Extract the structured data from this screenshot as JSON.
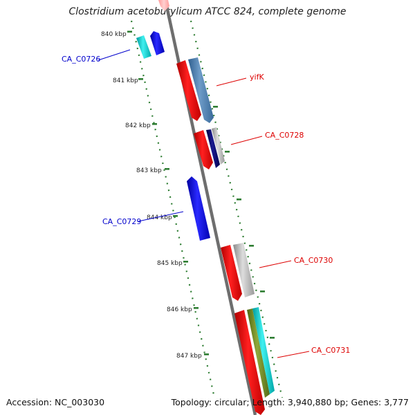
{
  "title": "Clostridium acetobutylicum ATCC 824, complete genome",
  "footer": {
    "accession": "Accession: NC_003030",
    "summary": "Topology: circular; Length: 3,940,880 bp; Genes: 3,777"
  },
  "colors": {
    "backbone": "#8a8a8a",
    "tick": "#2e7d32",
    "forward_label": "#dd0000",
    "reverse_label": "#0000cc"
  },
  "scale_ticks": [
    {
      "label": "840 kbp"
    },
    {
      "label": "841 kbp"
    },
    {
      "label": "842 kbp"
    },
    {
      "label": "843 kbp"
    },
    {
      "label": "844 kbp"
    },
    {
      "label": "845 kbp"
    },
    {
      "label": "846 kbp"
    },
    {
      "label": "847 kbp"
    }
  ],
  "gene_labels": [
    {
      "label": "CA_C0726",
      "strand": "reverse"
    },
    {
      "label": "yifK",
      "strand": "forward"
    },
    {
      "label": "CA_C0728",
      "strand": "forward"
    },
    {
      "label": "CA_C0729",
      "strand": "reverse"
    },
    {
      "label": "CA_C0730",
      "strand": "forward"
    },
    {
      "label": "CA_C0731",
      "strand": "forward"
    }
  ]
}
